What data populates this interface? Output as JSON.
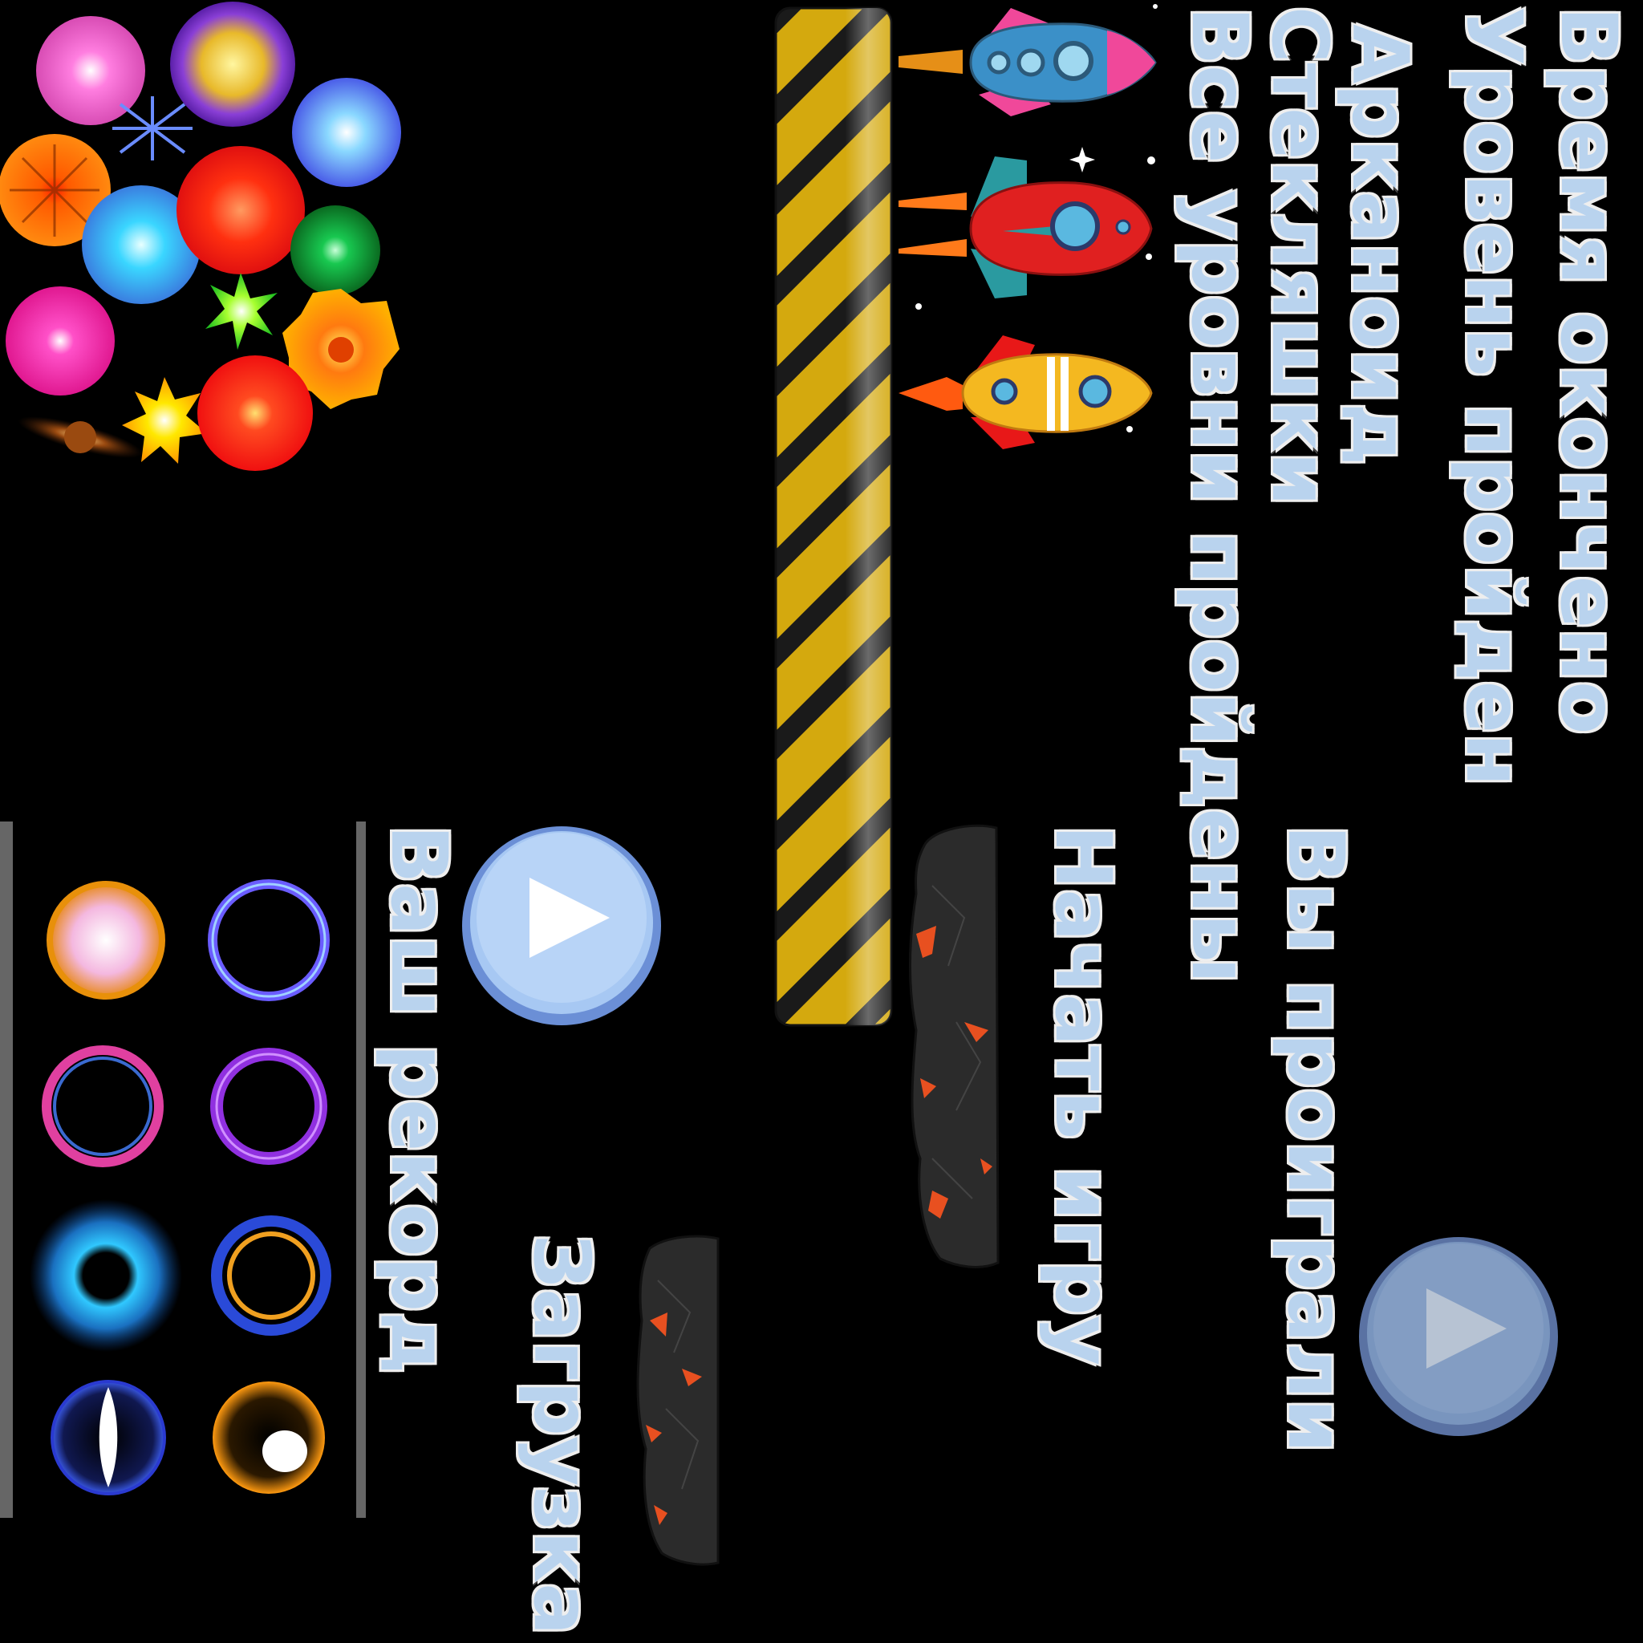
{
  "labels": {
    "time_over": "Время окончено",
    "level_passed": "Уровень пройден",
    "arkanoid": "Арканоид",
    "glass": "Стекляшки",
    "all_levels_passed": "Все уровни пройдены",
    "you_lost": "Вы проиграли",
    "start_game": "Начать игру",
    "your_record": "Ваш рекорд",
    "loading": "Загрузка"
  },
  "sprites": {
    "explosions": [
      "explosion-pink",
      "explosion-purple-gold",
      "explosion-blue",
      "explosion-orange",
      "explosion-cyan",
      "explosion-red",
      "explosion-green",
      "explosion-magenta",
      "explosion-lime",
      "explosion-orange-burst",
      "explosion-brown",
      "explosion-yellow",
      "explosion-red-orb"
    ],
    "rockets": [
      "rocket-blue",
      "rocket-red",
      "rocket-yellow"
    ],
    "rings": [
      "ring-pink-orb",
      "ring-blue",
      "ring-pink",
      "ring-purple",
      "ring-cyan-spiky",
      "ring-blue-gold",
      "ring-dark-blue",
      "ring-gold-white"
    ],
    "buttons": [
      "play-button",
      "play-button-faded"
    ]
  },
  "colors": {
    "label_fill": "#b9d3ee",
    "label_stroke": "#444444",
    "hazard_yellow": "#d4a90e",
    "play_blue": "#a7c8f3",
    "play_border": "#6b8fd6"
  }
}
